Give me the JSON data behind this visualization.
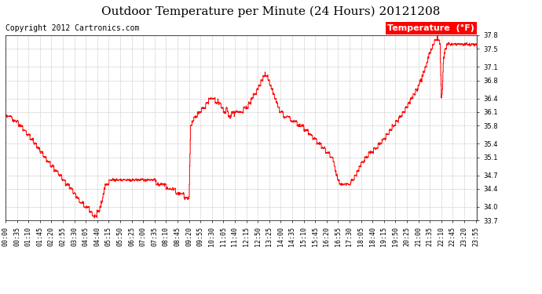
{
  "title": "Outdoor Temperature per Minute (24 Hours) 20121208",
  "copyright_text": "Copyright 2012 Cartronics.com",
  "legend_label": "Temperature  (°F)",
  "line_color": "red",
  "background_color": "white",
  "grid_color": "#aaaaaa",
  "legend_bg": "red",
  "legend_text_color": "white",
  "ylim": [
    33.7,
    37.8
  ],
  "yticks": [
    33.7,
    34.0,
    34.4,
    34.7,
    35.1,
    35.4,
    35.8,
    36.1,
    36.4,
    36.8,
    37.1,
    37.5,
    37.8
  ],
  "xtick_labels": [
    "00:00",
    "00:35",
    "01:10",
    "01:45",
    "02:20",
    "02:55",
    "03:30",
    "04:05",
    "04:40",
    "05:15",
    "05:50",
    "06:25",
    "07:00",
    "07:35",
    "08:10",
    "08:45",
    "09:20",
    "09:55",
    "10:30",
    "11:05",
    "11:40",
    "12:15",
    "12:50",
    "13:25",
    "14:00",
    "14:35",
    "15:10",
    "15:45",
    "16:20",
    "16:55",
    "17:30",
    "18:05",
    "18:40",
    "19:15",
    "19:50",
    "20:25",
    "21:00",
    "21:35",
    "22:10",
    "22:45",
    "23:20",
    "23:55"
  ],
  "title_fontsize": 11,
  "copyright_fontsize": 7,
  "tick_fontsize": 6,
  "legend_fontsize": 8
}
